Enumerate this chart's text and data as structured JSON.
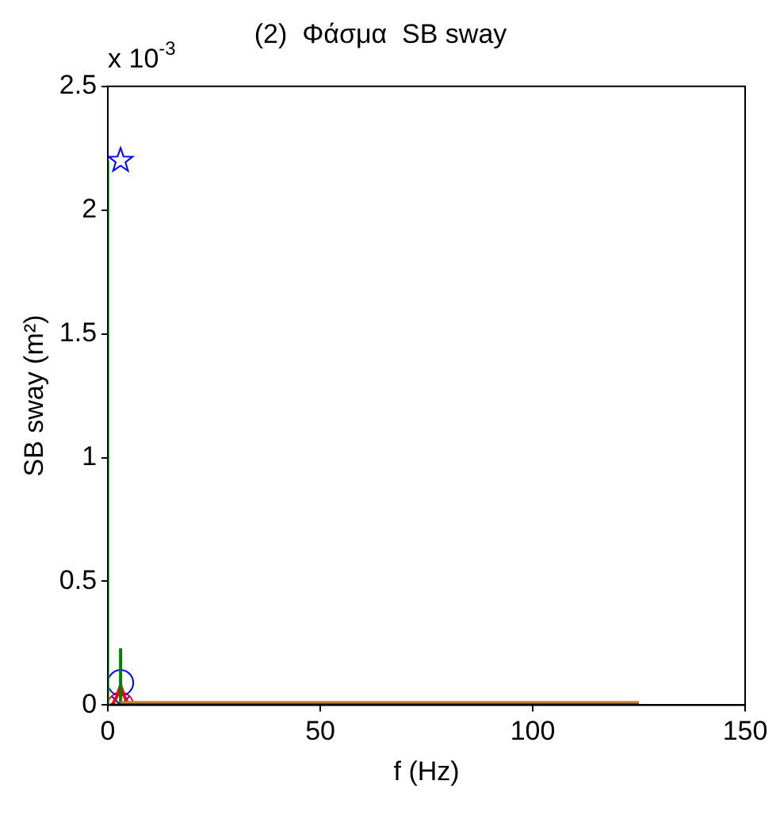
{
  "chart_data": {
    "type": "line",
    "title": "(2)  Φάσμα  SB sway",
    "xlabel": "f (Hz)",
    "ylabel": "SB sway (m²)",
    "annotations": [
      "x 10$^{-3}$"
    ],
    "xlim": [
      0,
      150
    ],
    "xticks": [
      0,
      50,
      100,
      150
    ],
    "ylim": [
      0,
      2.5
    ],
    "yticks": [
      0,
      0.5,
      1,
      1.5,
      2,
      2.5
    ],
    "grid": false,
    "legend": false,
    "series": [
      {
        "color": "#00ff00",
        "x": [
          0,
          0
        ],
        "values": [
          0,
          2.2
        ],
        "marker": "none"
      },
      {
        "color": "#000000",
        "x": [
          0,
          125
        ],
        "values": [
          0,
          0
        ],
        "marker": "none"
      },
      {
        "color": "#c0803c",
        "x": [
          3,
          125
        ],
        "values": [
          0.01,
          0.01
        ],
        "marker": "none"
      },
      {
        "color": "#008000",
        "x": [
          3,
          3
        ],
        "values": [
          0,
          0.23
        ],
        "marker": "none"
      },
      {
        "color": "#ff0000",
        "x": [
          1,
          2,
          3,
          4,
          5
        ],
        "values": [
          0,
          0.03,
          0.08,
          0.03,
          0
        ],
        "marker": "none"
      },
      {
        "type": "scatter",
        "color": "#0000ff",
        "x": [
          3
        ],
        "values": [
          2.2
        ],
        "marker": "star"
      },
      {
        "type": "scatter",
        "color": "#0000ff",
        "x": [
          3
        ],
        "values": [
          0.09
        ],
        "marker": "circle"
      },
      {
        "type": "scatter",
        "color": "#ff0000",
        "x": [
          3
        ],
        "values": [
          0
        ],
        "marker": "circle"
      },
      {
        "type": "scatter",
        "color": "#0000ff",
        "x": [
          3
        ],
        "values": [
          0
        ],
        "marker": "cross"
      }
    ]
  }
}
